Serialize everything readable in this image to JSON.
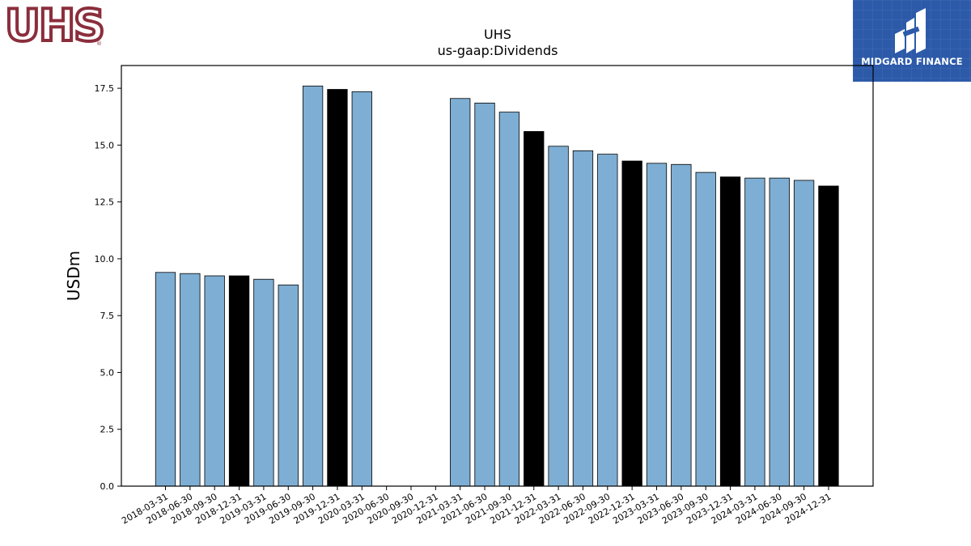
{
  "logos": {
    "company": {
      "text": "UHS"
    },
    "publisher": {
      "text": "MIDGARD FINANCE"
    }
  },
  "chart_data": {
    "type": "bar",
    "title": "UHS",
    "subtitle": "us-gaap:Dividends",
    "ylabel": "USDm",
    "xlabel": "",
    "ylim": [
      0,
      18.5
    ],
    "yticks": [
      0.0,
      2.5,
      5.0,
      7.5,
      10.0,
      12.5,
      15.0,
      17.5
    ],
    "grid": false,
    "colors": {
      "quarter": "#7eaed3",
      "year_end": "#000000",
      "edge": "#000000"
    },
    "categories": [
      "2018-03-31",
      "2018-06-30",
      "2018-09-30",
      "2018-12-31",
      "2019-03-31",
      "2019-06-30",
      "2019-09-30",
      "2019-12-31",
      "2020-03-31",
      "2020-06-30",
      "2020-09-30",
      "2020-12-31",
      "2021-03-31",
      "2021-06-30",
      "2021-09-30",
      "2021-12-31",
      "2022-03-31",
      "2022-06-30",
      "2022-09-30",
      "2022-12-31",
      "2023-03-31",
      "2023-06-30",
      "2023-09-30",
      "2023-12-31",
      "2024-03-31",
      "2024-06-30",
      "2024-09-30",
      "2024-12-31"
    ],
    "values": [
      9.4,
      9.35,
      9.25,
      9.25,
      9.1,
      8.85,
      17.6,
      17.45,
      17.35,
      null,
      null,
      null,
      17.05,
      16.85,
      16.45,
      15.6,
      14.95,
      14.75,
      14.6,
      14.3,
      14.2,
      14.15,
      13.8,
      13.6,
      13.55,
      13.55,
      13.45,
      13.2
    ]
  }
}
